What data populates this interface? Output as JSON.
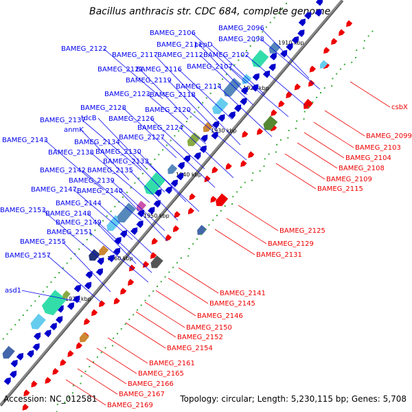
{
  "title": "Bacillus anthracis str. CDC 684, complete genome",
  "footer": {
    "accession": "Accession: NC_012581",
    "topology": "Topology: circular; Length: 5,230,115 bp; Genes: 5,708"
  },
  "colors": {
    "backbone": "#888888",
    "forward_gene": "#0000cc",
    "reverse_gene": "#ee0000",
    "label_forward": "#0000ee",
    "label_reverse": "#ee0000",
    "gc_marker": "#33aa33"
  },
  "ticks": [
    "1910 kbp",
    "1920 kbp",
    "1930 kbp",
    "1940 kbp",
    "1950 kbp",
    "1960 kbp",
    "1970 kbp"
  ],
  "forward_labels": [
    "BAMEG_2096",
    "BAMEG_2106",
    "BAMEG_2098",
    "BAMEG_2111",
    "pepD",
    "BAMEG_2122",
    "BAMEG_2117",
    "BAMEG_2112",
    "BAMEG_2102",
    "BAMEG_2121",
    "BAMEG_2116",
    "BAMEG_2107",
    "BAMEG_2119",
    "BAMEG_2114",
    "BAMEG_2123",
    "BAMEG_2118",
    "BAMEG_2128",
    "BAMEG_2120",
    "tdcB",
    "BAMEG_2126",
    "BAMEG_2137",
    "anmK",
    "BAMEG_2124",
    "BAMEG_2143",
    "BAMEG_2134",
    "BAMEG_2127",
    "BAMEG_2138",
    "BAMEG_2130",
    "BAMEG_2133",
    "BAMEG_2142",
    "BAMEG_2135",
    "BAMEG_2139",
    "BAMEG_2147",
    "BAMEG_2140",
    "BAMEG_2144",
    "BAMEG_2153",
    "BAMEG_2148",
    "BAMEG_2149",
    "BAMEG_2151",
    "BAMEG_2155",
    "BAMEG_2157",
    "asd1"
  ],
  "reverse_labels": [
    "csbX",
    "BAMEG_2099",
    "BAMEG_2103",
    "BAMEG_2104",
    "BAMEG_2108",
    "BAMEG_2109",
    "BAMEG_2115",
    "BAMEG_2125",
    "BAMEG_2129",
    "BAMEG_2131",
    "BAMEG_2141",
    "BAMEG_2145",
    "BAMEG_2146",
    "BAMEG_2150",
    "BAMEG_2152",
    "BAMEG_2154",
    "BAMEG_2161",
    "BAMEG_2165",
    "BAMEG_2166",
    "BAMEG_2167",
    "BAMEG_2169"
  ]
}
